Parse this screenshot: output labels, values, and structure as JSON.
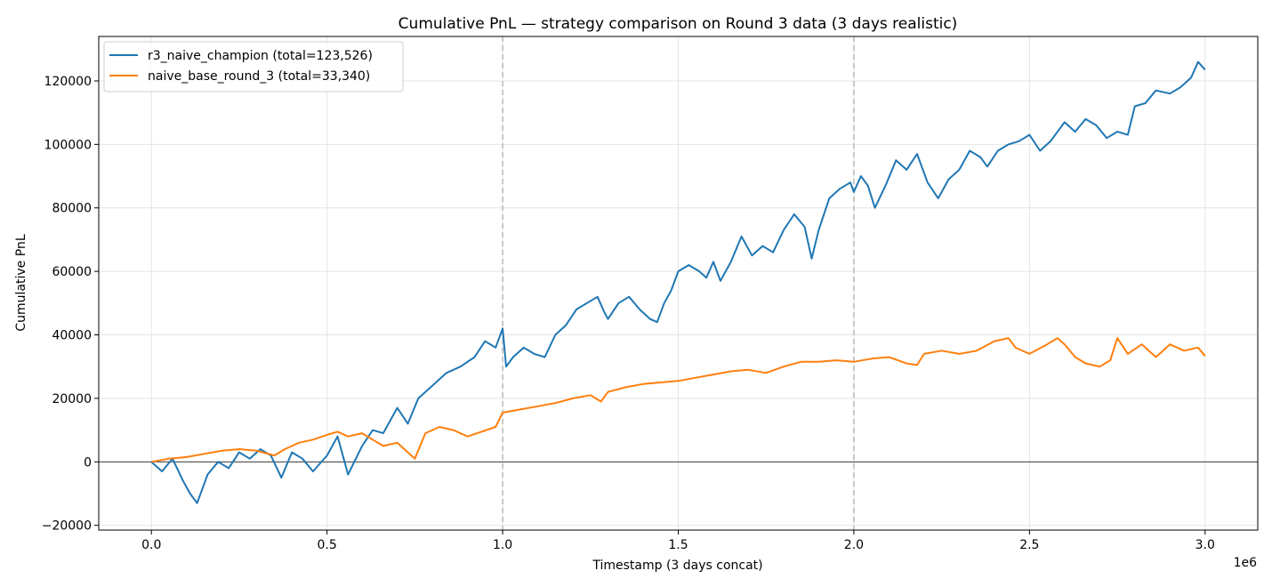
{
  "chart_data": {
    "type": "line",
    "title": "Cumulative PnL — strategy comparison on Round 3 data (3 days realistic)",
    "xlabel": "Timestamp (3 days concat)",
    "ylabel": "Cumulative PnL",
    "x_offset_label": "1e6",
    "xlim": [
      -0.15,
      3.15
    ],
    "ylim": [
      -21500,
      134000
    ],
    "x_ticks": [
      0.0,
      0.5,
      1.0,
      1.5,
      2.0,
      2.5,
      3.0
    ],
    "x_tick_labels": [
      "0.0",
      "0.5",
      "1.0",
      "1.5",
      "2.0",
      "2.5",
      "3.0"
    ],
    "y_ticks": [
      -20000,
      0,
      20000,
      40000,
      60000,
      80000,
      100000,
      120000
    ],
    "y_tick_labels": [
      "−20000",
      "0",
      "20000",
      "40000",
      "60000",
      "80000",
      "100000",
      "120000"
    ],
    "vertical_markers": [
      1.0,
      2.0
    ],
    "zero_line": true,
    "grid": true,
    "legend_position": "upper-left",
    "series": [
      {
        "name": "r3_naive_champion  (total=123,526)",
        "color": "#1f77b4",
        "x": [
          0.0,
          0.03,
          0.06,
          0.09,
          0.11,
          0.13,
          0.16,
          0.19,
          0.22,
          0.25,
          0.28,
          0.31,
          0.34,
          0.37,
          0.4,
          0.43,
          0.46,
          0.5,
          0.53,
          0.56,
          0.6,
          0.63,
          0.66,
          0.7,
          0.73,
          0.76,
          0.8,
          0.84,
          0.88,
          0.92,
          0.95,
          0.98,
          1.0,
          1.01,
          1.03,
          1.06,
          1.09,
          1.12,
          1.15,
          1.18,
          1.21,
          1.24,
          1.27,
          1.29,
          1.3,
          1.33,
          1.36,
          1.39,
          1.42,
          1.44,
          1.46,
          1.48,
          1.5,
          1.53,
          1.56,
          1.58,
          1.6,
          1.62,
          1.65,
          1.68,
          1.71,
          1.74,
          1.77,
          1.8,
          1.83,
          1.86,
          1.88,
          1.9,
          1.93,
          1.96,
          1.99,
          2.0,
          2.02,
          2.04,
          2.06,
          2.09,
          2.12,
          2.15,
          2.18,
          2.21,
          2.24,
          2.27,
          2.3,
          2.33,
          2.36,
          2.38,
          2.41,
          2.44,
          2.47,
          2.5,
          2.53,
          2.56,
          2.6,
          2.63,
          2.66,
          2.69,
          2.72,
          2.75,
          2.78,
          2.8,
          2.83,
          2.86,
          2.9,
          2.93,
          2.96,
          2.98,
          3.0
        ],
        "y": [
          0,
          -3000,
          1000,
          -6000,
          -10000,
          -13000,
          -4000,
          0,
          -2000,
          3000,
          1000,
          4000,
          2000,
          -5000,
          3000,
          1000,
          -3000,
          2000,
          8000,
          -4000,
          5000,
          10000,
          9000,
          17000,
          12000,
          20000,
          24000,
          28000,
          30000,
          33000,
          38000,
          36000,
          42000,
          30000,
          33000,
          36000,
          34000,
          33000,
          40000,
          43000,
          48000,
          50000,
          52000,
          47000,
          45000,
          50000,
          52000,
          48000,
          45000,
          44000,
          50000,
          54000,
          60000,
          62000,
          60000,
          58000,
          63000,
          57000,
          63000,
          71000,
          65000,
          68000,
          66000,
          73000,
          78000,
          74000,
          64000,
          73000,
          83000,
          86000,
          88000,
          85000,
          90000,
          87000,
          80000,
          87000,
          95000,
          92000,
          97000,
          88000,
          83000,
          89000,
          92000,
          98000,
          96000,
          93000,
          98000,
          100000,
          101000,
          103000,
          98000,
          101000,
          107000,
          104000,
          108000,
          106000,
          102000,
          104000,
          103000,
          112000,
          113000,
          117000,
          116000,
          118000,
          121000,
          126000,
          123526
        ]
      },
      {
        "name": "naive_base_round_3  (total=33,340)",
        "color": "#ff7f0e",
        "x": [
          0.0,
          0.05,
          0.1,
          0.15,
          0.2,
          0.25,
          0.3,
          0.35,
          0.38,
          0.42,
          0.46,
          0.5,
          0.53,
          0.56,
          0.6,
          0.63,
          0.66,
          0.7,
          0.73,
          0.75,
          0.78,
          0.82,
          0.86,
          0.9,
          0.94,
          0.98,
          1.0,
          1.05,
          1.1,
          1.15,
          1.2,
          1.25,
          1.28,
          1.3,
          1.35,
          1.4,
          1.45,
          1.5,
          1.55,
          1.6,
          1.65,
          1.7,
          1.75,
          1.8,
          1.85,
          1.9,
          1.95,
          2.0,
          2.05,
          2.1,
          2.15,
          2.18,
          2.2,
          2.25,
          2.3,
          2.35,
          2.4,
          2.44,
          2.46,
          2.5,
          2.55,
          2.58,
          2.6,
          2.63,
          2.66,
          2.7,
          2.73,
          2.75,
          2.78,
          2.82,
          2.86,
          2.9,
          2.94,
          2.98,
          3.0
        ],
        "y": [
          0,
          1000,
          1500,
          2500,
          3500,
          4000,
          3500,
          2000,
          4000,
          6000,
          7000,
          8500,
          9500,
          8000,
          9000,
          7000,
          5000,
          6000,
          3000,
          1000,
          9000,
          11000,
          10000,
          8000,
          9500,
          11000,
          15500,
          16500,
          17500,
          18500,
          20000,
          21000,
          19000,
          22000,
          23500,
          24500,
          25000,
          25500,
          26500,
          27500,
          28500,
          29000,
          28000,
          30000,
          31500,
          31500,
          32000,
          31500,
          32500,
          33000,
          31000,
          30500,
          34000,
          35000,
          34000,
          35000,
          38000,
          39000,
          36000,
          34000,
          37000,
          39000,
          37000,
          33000,
          31000,
          30000,
          32000,
          39000,
          34000,
          37000,
          33000,
          37000,
          35000,
          36000,
          33340
        ]
      }
    ]
  }
}
